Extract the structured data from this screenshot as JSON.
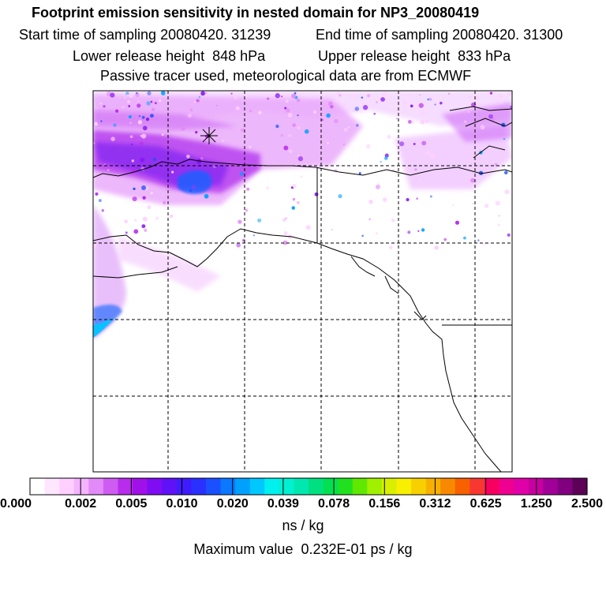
{
  "header": {
    "title": "Footprint emission sensitivity in nested domain for NP3_20080419",
    "start_time": "Start time of sampling 20080420. 31239",
    "end_time": "End time of sampling 20080420. 31300",
    "lower_release": "Lower release height  848 hPa",
    "upper_release": "Upper release height  833 hPa",
    "tracer_note": "Passive tracer used, meteorological data are from ECMWF"
  },
  "colorbar": {
    "tick_labels": [
      "0.000",
      "0.002",
      "0.005",
      "0.010",
      "0.020",
      "0.039",
      "0.078",
      "0.156",
      "0.312",
      "0.625",
      "1.250",
      "2.500"
    ],
    "colors": [
      "#ffffff",
      "#ffe6ff",
      "#ffd0ff",
      "#f4b4ff",
      "#e28af8",
      "#cf5cf2",
      "#b82ced",
      "#a010e8",
      "#7f0cf2",
      "#5f12f8",
      "#3f1cfc",
      "#2a30ff",
      "#1a50ff",
      "#0a78ff",
      "#00a0ff",
      "#00c8ff",
      "#00f0f0",
      "#00f0d0",
      "#00e8b0",
      "#00e080",
      "#00e050",
      "#20e020",
      "#60e800",
      "#a0f000",
      "#d8f000",
      "#f8f000",
      "#f8d000",
      "#f8b000",
      "#f88800",
      "#f86000",
      "#f83830",
      "#f80060",
      "#f00090",
      "#e000a8",
      "#c800a0",
      "#a00098",
      "#800080",
      "#5c0058"
    ],
    "units": "ns / kg"
  },
  "footer": {
    "max_value": "Maximum value  0.232E-01 ps / kg"
  },
  "map": {
    "frame_color": "#000000",
    "grid_style": "dashed",
    "marker": "release-site-star",
    "sensitivity_colors": [
      "#ffd0ff",
      "#e28af8",
      "#b82ced",
      "#7f0cf2",
      "#1a50ff",
      "#00a0ff"
    ]
  }
}
